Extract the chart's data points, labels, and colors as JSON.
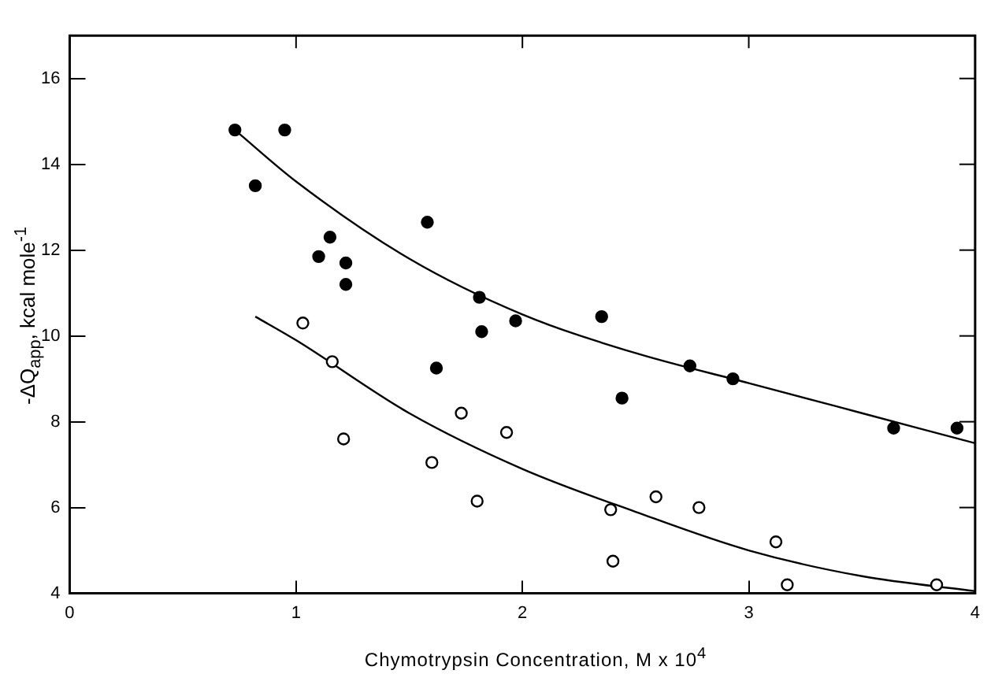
{
  "chart_data": {
    "type": "scatter",
    "xlabel": "Chymotrypsin Concentration, M x 10$^{4}$",
    "ylabel": "-ΔQ$_{app}$, kcal mole$^{-1}$",
    "xlim": [
      0,
      4
    ],
    "ylim": [
      4,
      17
    ],
    "xticks": [
      0,
      1,
      2,
      3,
      4
    ],
    "yticks": [
      4,
      6,
      8,
      10,
      12,
      14,
      16
    ],
    "tick_labels": "xy",
    "grid": false,
    "legend": false,
    "marker": "circle",
    "series": [
      {
        "color": "#000000",
        "x": [
          0.73,
          0.82,
          0.95,
          1.1,
          1.15,
          1.22,
          1.22,
          1.58,
          1.62,
          1.81,
          1.82,
          1.97,
          2.35,
          2.44,
          2.74,
          2.93,
          3.64,
          3.92
        ],
        "values": [
          14.8,
          13.5,
          14.8,
          11.85,
          12.3,
          11.7,
          11.2,
          12.65,
          9.25,
          10.9,
          10.1,
          10.35,
          10.45,
          8.55,
          9.3,
          9.0,
          7.85,
          7.85
        ]
      },
      {
        "color": "#ffffff",
        "x": [
          1.03,
          1.16,
          1.21,
          1.6,
          1.73,
          1.8,
          1.93,
          2.39,
          2.4,
          2.59,
          2.78,
          3.12,
          3.17,
          3.83
        ],
        "values": [
          10.3,
          9.4,
          7.6,
          7.05,
          8.2,
          6.15,
          7.75,
          5.95,
          4.75,
          6.25,
          6.0,
          5.2,
          4.2,
          4.2
        ]
      },
      {
        "type": "line",
        "color": "#000000",
        "marker": "none",
        "line_style": "solid",
        "x": [
          0.73,
          1.0,
          1.5,
          2.0,
          2.5,
          3.0,
          3.5,
          4.0
        ],
        "values": [
          14.8,
          13.6,
          11.8,
          10.5,
          9.6,
          8.9,
          8.2,
          7.5
        ]
      },
      {
        "type": "line",
        "color": "#000000",
        "marker": "none",
        "line_style": "solid",
        "x": [
          0.82,
          1.0,
          1.5,
          2.0,
          2.5,
          3.0,
          3.5,
          4.0
        ],
        "values": [
          10.45,
          9.9,
          8.2,
          6.9,
          5.9,
          5.0,
          4.4,
          4.05
        ]
      }
    ]
  }
}
